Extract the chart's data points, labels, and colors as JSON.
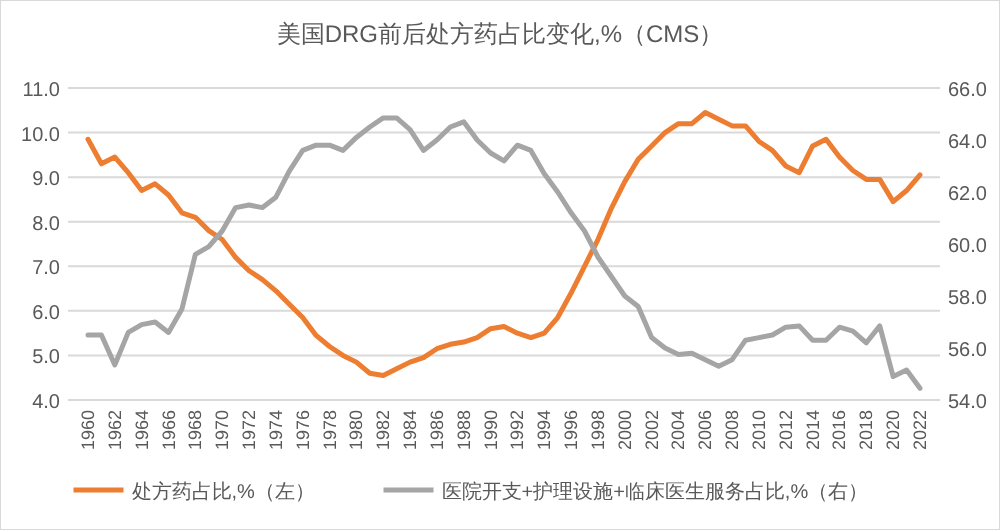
{
  "chart_data": {
    "type": "line",
    "title": "美国DRG前后处方药占比变化,%（CMS）",
    "categories": [
      "1960",
      null,
      "1962",
      null,
      "1964",
      null,
      "1966",
      null,
      "1968",
      null,
      "1970",
      null,
      "1972",
      null,
      "1974",
      null,
      "1976",
      null,
      "1978",
      null,
      "1980",
      null,
      "1982",
      null,
      "1984",
      null,
      "1986",
      null,
      "1988",
      null,
      "1990",
      null,
      "1992",
      null,
      "1994",
      null,
      "1996",
      null,
      "1998",
      null,
      "2000",
      null,
      "2002",
      null,
      "2004",
      null,
      "2006",
      null,
      "2008",
      null,
      "2010",
      null,
      "2012",
      null,
      "2014",
      null,
      "2016",
      null,
      "2018",
      null,
      "2020",
      null,
      "2022"
    ],
    "series": [
      {
        "name": "处方药占比,%（左）",
        "color": "#ed7d31",
        "axis": "y",
        "values": [
          9.85,
          9.3,
          9.45,
          9.1,
          8.7,
          8.85,
          8.6,
          8.2,
          8.1,
          7.8,
          7.6,
          7.2,
          6.9,
          6.7,
          6.45,
          6.15,
          5.85,
          5.45,
          5.2,
          5.0,
          4.85,
          4.6,
          4.55,
          4.7,
          4.85,
          4.95,
          5.15,
          5.25,
          5.3,
          5.4,
          5.6,
          5.65,
          5.5,
          5.4,
          5.5,
          5.85,
          6.4,
          7.0,
          7.6,
          8.3,
          8.9,
          9.4,
          9.7,
          10.0,
          10.2,
          10.2,
          10.45,
          10.3,
          10.15,
          10.15,
          9.8,
          9.6,
          9.25,
          9.1,
          9.7,
          9.85,
          9.45,
          9.15,
          8.95,
          8.95,
          8.45,
          8.7,
          9.05
        ]
      },
      {
        "name": "医院开支+护理设施+临床医生服务占比,%（右）",
        "color": "#a5a5a5",
        "axis": "y2",
        "values": [
          56.5,
          56.5,
          55.35,
          56.6,
          56.9,
          57.0,
          56.6,
          57.5,
          59.6,
          59.9,
          60.5,
          61.4,
          61.5,
          61.4,
          61.8,
          62.8,
          63.6,
          63.8,
          63.8,
          63.6,
          64.1,
          64.5,
          64.85,
          64.85,
          64.4,
          63.6,
          64.0,
          64.5,
          64.7,
          64.0,
          63.5,
          63.2,
          63.8,
          63.6,
          62.7,
          62.0,
          61.2,
          60.5,
          59.5,
          58.75,
          58.0,
          57.6,
          56.4,
          56.0,
          55.75,
          55.8,
          55.55,
          55.3,
          55.55,
          56.3,
          56.4,
          56.5,
          56.8,
          56.85,
          56.3,
          56.3,
          56.8,
          56.65,
          56.2,
          56.85,
          54.9,
          55.15,
          54.45
        ]
      }
    ],
    "ylim": [
      4,
      11
    ],
    "yticks": [
      {
        "value": 4,
        "label": "4.0"
      },
      {
        "value": 5,
        "label": "5.0"
      },
      {
        "value": 6,
        "label": "6.0"
      },
      {
        "value": 7,
        "label": "7.0"
      },
      {
        "value": 8,
        "label": "8.0"
      },
      {
        "value": 9,
        "label": "9.0"
      },
      {
        "value": 10,
        "label": "10.0"
      },
      {
        "value": 11,
        "label": "11.0"
      }
    ],
    "y2lim": [
      54,
      66
    ],
    "y2ticks": [
      {
        "value": 54,
        "label": "54.0"
      },
      {
        "value": 56,
        "label": "56.0"
      },
      {
        "value": 58,
        "label": "58.0"
      },
      {
        "value": 60,
        "label": "60.0"
      },
      {
        "value": 62,
        "label": "62.0"
      },
      {
        "value": 64,
        "label": "64.0"
      },
      {
        "value": 66,
        "label": "66.0"
      }
    ],
    "grid": "y",
    "legend": "bottom"
  }
}
